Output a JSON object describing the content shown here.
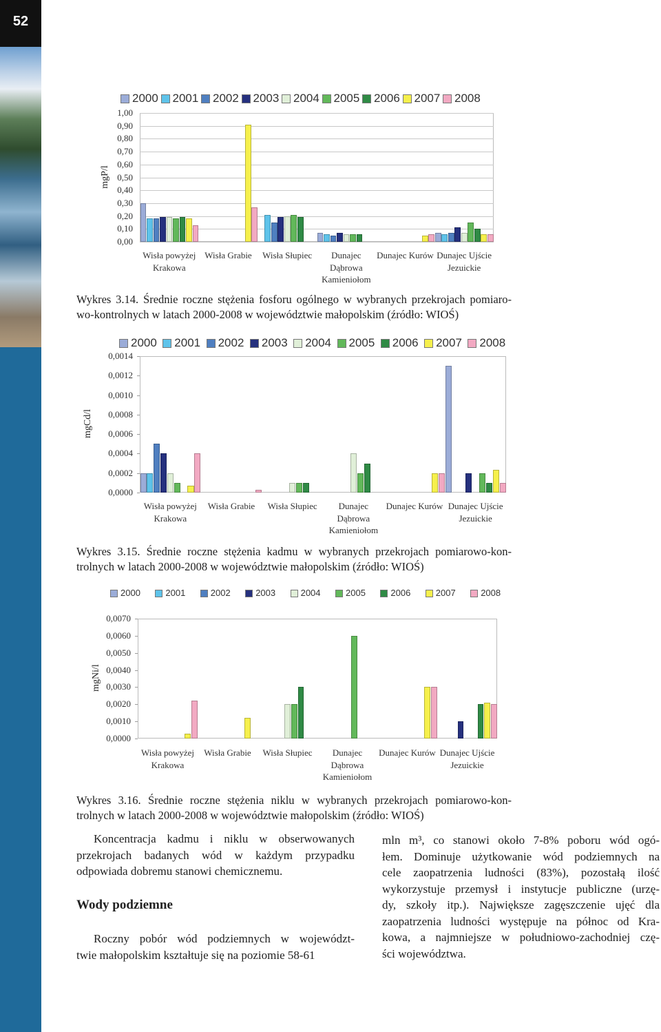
{
  "page_number": "52",
  "chart_data": [
    {
      "type": "bar",
      "y_label": "mgP/l",
      "categories": [
        "Wisła powyżej Krakowa",
        "Wisła Grabie",
        "Wisła Słupiec",
        "Dunajec Dąbrowa Kamieniołom",
        "Dunajec Kurów",
        "Dunajec Ujście Jezuickie"
      ],
      "series": [
        {
          "name": "2000",
          "color": "#9bacd8",
          "values": [
            0.3,
            null,
            null,
            0.07,
            null,
            0.07
          ]
        },
        {
          "name": "2001",
          "color": "#5ec3ea",
          "values": [
            0.18,
            null,
            0.21,
            0.06,
            null,
            0.06
          ]
        },
        {
          "name": "2002",
          "color": "#4f7fc0",
          "values": [
            0.18,
            null,
            0.15,
            0.05,
            null,
            0.07
          ]
        },
        {
          "name": "2003",
          "color": "#25307e",
          "values": [
            0.19,
            null,
            0.19,
            0.07,
            null,
            0.11
          ]
        },
        {
          "name": "2004",
          "color": "#e0efd8",
          "values": [
            0.19,
            null,
            0.2,
            0.06,
            null,
            0.07
          ]
        },
        {
          "name": "2005",
          "color": "#62b85a",
          "values": [
            0.18,
            null,
            0.21,
            0.06,
            null,
            0.15
          ]
        },
        {
          "name": "2006",
          "color": "#2f8a45",
          "values": [
            0.19,
            null,
            0.19,
            0.06,
            null,
            0.1
          ]
        },
        {
          "name": "2007",
          "color": "#f6f04c",
          "values": [
            0.18,
            0.91,
            null,
            null,
            0.05,
            0.06
          ]
        },
        {
          "name": "2008",
          "color": "#f2a9c2",
          "values": [
            0.13,
            0.27,
            null,
            null,
            0.06,
            0.06
          ]
        }
      ],
      "ylim": [
        0,
        1.0
      ],
      "yticks": [
        {
          "value": 0,
          "label": "0,00"
        },
        {
          "value": 0.1,
          "label": "0,10"
        },
        {
          "value": 0.2,
          "label": "0,20"
        },
        {
          "value": 0.3,
          "label": "0,30"
        },
        {
          "value": 0.4,
          "label": "0,40"
        },
        {
          "value": 0.5,
          "label": "0,50"
        },
        {
          "value": 0.6,
          "label": "0,60"
        },
        {
          "value": 0.7,
          "label": "0,70"
        },
        {
          "value": 0.8,
          "label": "0,80"
        },
        {
          "value": 0.9,
          "label": "0,90"
        },
        {
          "value": 1.0,
          "label": "1,00"
        }
      ],
      "grid": true
    },
    {
      "type": "bar",
      "y_label": "mgCd/l",
      "categories": [
        "Wisła powyżej Krakowa",
        "Wisła Grabie",
        "Wisła Słupiec",
        "Dunajec Dąbrowa Kamieniołom",
        "Dunajec Kurów",
        "Dunajec Ujście Jezuickie"
      ],
      "series": [
        {
          "name": "2000",
          "color": "#9bacd8",
          "values": [
            0.0002,
            null,
            null,
            null,
            null,
            0.0013
          ]
        },
        {
          "name": "2001",
          "color": "#5ec3ea",
          "values": [
            0.0002,
            null,
            null,
            null,
            null,
            null
          ]
        },
        {
          "name": "2002",
          "color": "#4f7fc0",
          "values": [
            0.0005,
            null,
            null,
            null,
            null,
            null
          ]
        },
        {
          "name": "2003",
          "color": "#25307e",
          "values": [
            0.0004,
            null,
            null,
            null,
            null,
            0.0002
          ]
        },
        {
          "name": "2004",
          "color": "#e0efd8",
          "values": [
            0.0002,
            null,
            0.0001,
            0.0004,
            null,
            null
          ]
        },
        {
          "name": "2005",
          "color": "#62b85a",
          "values": [
            0.0001,
            null,
            0.0001,
            0.0002,
            null,
            0.0002
          ]
        },
        {
          "name": "2006",
          "color": "#2f8a45",
          "values": [
            null,
            null,
            0.0001,
            0.0003,
            null,
            0.0001
          ]
        },
        {
          "name": "2007",
          "color": "#f6f04c",
          "values": [
            7e-05,
            null,
            null,
            null,
            0.0002,
            0.00023
          ]
        },
        {
          "name": "2008",
          "color": "#f2a9c2",
          "values": [
            0.0004,
            3e-05,
            null,
            null,
            0.0002,
            0.0001
          ]
        }
      ],
      "ylim": [
        0,
        0.0014
      ],
      "yticks": [
        {
          "value": 0,
          "label": "0,0000"
        },
        {
          "value": 0.0002,
          "label": "0,0002"
        },
        {
          "value": 0.0004,
          "label": "0,0004"
        },
        {
          "value": 0.0006,
          "label": "0,0006"
        },
        {
          "value": 0.0008,
          "label": "0,0008"
        },
        {
          "value": 0.001,
          "label": "0,0010"
        },
        {
          "value": 0.0012,
          "label": "0,0012"
        },
        {
          "value": 0.0014,
          "label": "0,0014"
        }
      ],
      "grid": false
    },
    {
      "type": "bar",
      "y_label": "mgNi/l",
      "categories": [
        "Wisła powyżej Krakowa",
        "Wisła Grabie",
        "Wisła Słupiec",
        "Dunajec Dąbrowa Kamieniołom",
        "Dunajec Kurów",
        "Dunajec Ujście Jezuickie"
      ],
      "series": [
        {
          "name": "2000",
          "color": "#9bacd8",
          "values": [
            null,
            null,
            null,
            null,
            null,
            null
          ]
        },
        {
          "name": "2001",
          "color": "#5ec3ea",
          "values": [
            null,
            null,
            null,
            null,
            null,
            null
          ]
        },
        {
          "name": "2002",
          "color": "#4f7fc0",
          "values": [
            null,
            null,
            null,
            null,
            null,
            null
          ]
        },
        {
          "name": "2003",
          "color": "#25307e",
          "values": [
            null,
            null,
            null,
            null,
            null,
            0.001
          ]
        },
        {
          "name": "2004",
          "color": "#e0efd8",
          "values": [
            null,
            null,
            0.002,
            null,
            null,
            null
          ]
        },
        {
          "name": "2005",
          "color": "#62b85a",
          "values": [
            null,
            null,
            0.002,
            0.006,
            null,
            null
          ]
        },
        {
          "name": "2006",
          "color": "#2f8a45",
          "values": [
            null,
            null,
            0.003,
            null,
            null,
            0.002
          ]
        },
        {
          "name": "2007",
          "color": "#f6f04c",
          "values": [
            0.0003,
            0.0012,
            null,
            null,
            0.003,
            0.0021
          ]
        },
        {
          "name": "2008",
          "color": "#f2a9c2",
          "values": [
            0.0022,
            null,
            null,
            null,
            0.003,
            0.002
          ]
        }
      ],
      "ylim": [
        0,
        0.007
      ],
      "yticks": [
        {
          "value": 0,
          "label": "0,0000"
        },
        {
          "value": 0.001,
          "label": "0,0010"
        },
        {
          "value": 0.002,
          "label": "0,0020"
        },
        {
          "value": 0.003,
          "label": "0,0030"
        },
        {
          "value": 0.004,
          "label": "0,0040"
        },
        {
          "value": 0.005,
          "label": "0,0050"
        },
        {
          "value": 0.006,
          "label": "0,0060"
        },
        {
          "value": 0.007,
          "label": "0,0070"
        }
      ],
      "grid": false
    }
  ],
  "captions": [
    [
      "Wykres 3.14. Średnie roczne stężenia fosforu ogólnego w wybranych przekrojach pomiaro-",
      "wo-kontrolnych w latach 2000-2008 w województwie małopolskim (źródło: WIOŚ)"
    ],
    [
      "Wykres 3.15. Średnie roczne stężenia kadmu w wybranych przekrojach pomiarowo-kon-",
      "trolnych w latach 2000-2008 w województwie małopolskim (źródło: WIOŚ)"
    ],
    [
      "Wykres 3.16. Średnie roczne stężenia niklu w wybranych przekrojach pomiarowo-kon-",
      "trolnych w latach 2000-2008 w województwie małopolskim (źródło: WIOŚ)"
    ]
  ],
  "left_column": {
    "paragraph_1": [
      "Koncentracja kadmu i niklu w obserwowanych",
      "przekrojach badanych wód w każdym przypadku",
      "odpowiada dobremu stanowi chemicznemu."
    ],
    "heading": "Wody podziemne",
    "paragraph_2": [
      "Roczny pobór wód podziemnych w województ-",
      "twie małopolskim kształtuje się na poziomie 58-61"
    ]
  },
  "right_column": {
    "paragraph": [
      "mln m³, co stanowi około 7-8% poboru wód ogó-",
      "łem. Dominuje użytkowanie wód podziemnych na",
      "cele zaopatrzenia ludności (83%), pozostałą ilość",
      "wykorzystuje przemysł i instytucje publiczne (urzę-",
      "dy, szkoły itp.). Największe zagęszczenie ujęć dla",
      "zaopatrzenia ludności występuje na północ od Kra-",
      "kowa, a najmniejsze w południowo-zachodniej czę-",
      "ści województwa."
    ]
  }
}
